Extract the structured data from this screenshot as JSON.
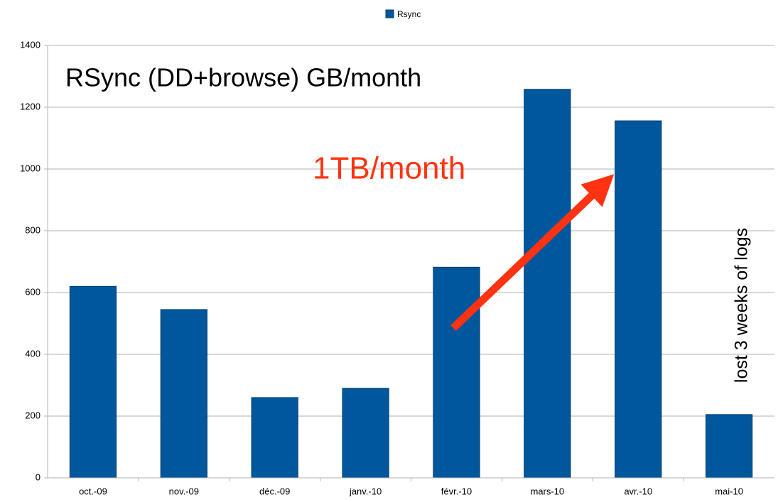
{
  "chart_data": {
    "type": "bar",
    "title": "RSync (DD+browse) GB/month",
    "annotations": [
      "1TB/month",
      "lost 3 weeks of logs"
    ],
    "categories": [
      "oct.-09",
      "nov.-09",
      "déc.-09",
      "janv.-10",
      "févr.-10",
      "mars-10",
      "avr.-10",
      "mai-10"
    ],
    "series": [
      {
        "name": "Rsync",
        "color": "#00579c",
        "values": [
          620,
          545,
          260,
          290,
          682,
          1258,
          1156,
          205
        ]
      }
    ],
    "ylim": [
      0,
      1400
    ],
    "yticks": [
      0,
      200,
      400,
      600,
      800,
      1000,
      1200,
      1400
    ],
    "grid": true,
    "legend": "top"
  }
}
